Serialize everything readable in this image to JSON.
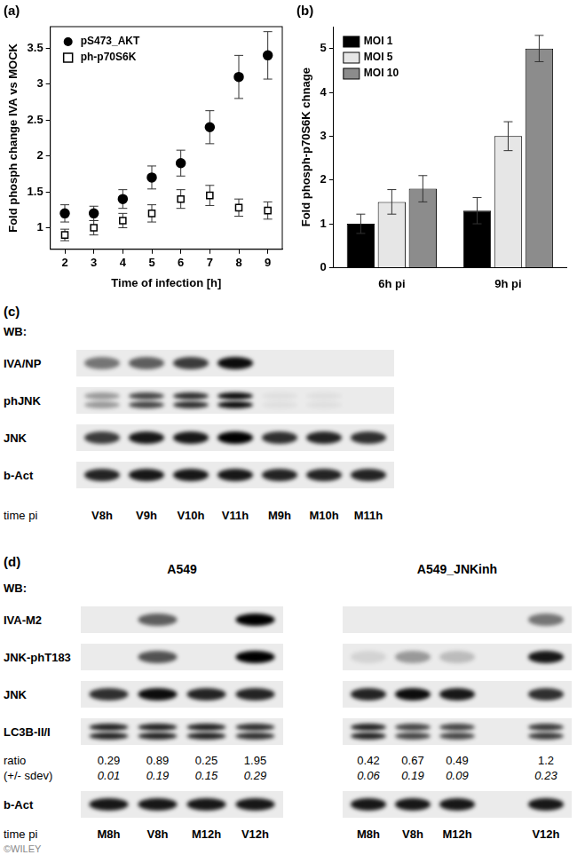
{
  "chart_data": [
    {
      "type": "scatter",
      "title": "(a)",
      "x_label": "Time of infection [h]",
      "y_label": "Fold phosph change IVA vs MOCK",
      "x": [
        2,
        3,
        4,
        5,
        6,
        7,
        8,
        9
      ],
      "xlim": [
        1.5,
        9.5
      ],
      "xticks": [
        2,
        3,
        4,
        5,
        6,
        7,
        8,
        9
      ],
      "ylim": [
        0.7,
        3.8
      ],
      "yticks": [
        1,
        1.5,
        2,
        2.5,
        3,
        3.5
      ],
      "grid": false,
      "legend": "upper left",
      "series": [
        {
          "name": "pS473_AKT",
          "color": "#000000",
          "marker": "circle",
          "values": [
            1.2,
            1.2,
            1.4,
            1.7,
            1.9,
            2.4,
            3.1,
            3.4
          ],
          "errors": [
            0.12,
            0.1,
            0.13,
            0.16,
            0.18,
            0.23,
            0.3,
            0.33
          ]
        },
        {
          "name": "ph-p70S6K",
          "color": "#000000",
          "marker": "open-square",
          "values": [
            0.9,
            1.0,
            1.1,
            1.2,
            1.4,
            1.45,
            1.28,
            1.24
          ],
          "errors": [
            0.08,
            0.1,
            0.1,
            0.12,
            0.13,
            0.14,
            0.12,
            0.12
          ]
        }
      ]
    },
    {
      "type": "bar",
      "title": "(b)",
      "y_label": "Fold phosph-p70S6K chnage",
      "categories": [
        "6h pi",
        "9h pi"
      ],
      "ylim": [
        0,
        5.5
      ],
      "yticks": [
        0,
        1,
        2,
        3,
        4,
        5
      ],
      "grid": false,
      "legend": "upper left",
      "series": [
        {
          "name": "MOI 1",
          "color": "#000000",
          "values": [
            1.0,
            1.3
          ],
          "errors": [
            0.22,
            0.3
          ]
        },
        {
          "name": "MOI 5",
          "color": "#e6e6e6",
          "values": [
            1.5,
            3.0
          ],
          "errors": [
            0.28,
            0.33
          ]
        },
        {
          "name": "MOI 10",
          "color": "#8c8c8c",
          "values": [
            1.8,
            5.0
          ],
          "errors": [
            0.3,
            0.3
          ]
        }
      ]
    }
  ],
  "blots": [
    {
      "panel": "(c)",
      "header": "WB:",
      "lane_axis_label": "time pi",
      "panels": [
        {
          "lanes": [
            "V8h",
            "V9h",
            "V10h",
            "V11h",
            "M9h",
            "M10h",
            "M11h"
          ],
          "rows": [
            {
              "label": "IVA/NP",
              "intensity": [
                0.5,
                0.6,
                0.75,
                0.95,
                0,
                0,
                0
              ]
            },
            {
              "label": "phJNK",
              "doublet": true,
              "intensity": [
                0.35,
                0.7,
                0.8,
                0.95,
                0.05,
                0.05,
                0
              ]
            },
            {
              "label": "JNK",
              "intensity": [
                0.75,
                0.9,
                0.9,
                1,
                0.8,
                0.85,
                0.8
              ]
            },
            {
              "label": "b-Act",
              "intensity": [
                0.85,
                0.9,
                0.9,
                0.9,
                0.85,
                0.85,
                0.85
              ]
            }
          ]
        }
      ]
    },
    {
      "panel": "(d)",
      "header": "WB:",
      "lane_axis_label": "time pi",
      "panels": [
        {
          "title": "A549",
          "lanes": [
            "M8h",
            "V8h",
            "M12h",
            "V12h"
          ],
          "rows": [
            {
              "label": "IVA-M2",
              "intensity": [
                0,
                0.6,
                0,
                1
              ]
            },
            {
              "label": "JNK-phT183",
              "intensity": [
                0,
                0.65,
                0,
                1
              ]
            },
            {
              "label": "JNK",
              "intensity": [
                0.8,
                0.95,
                0.85,
                0.85
              ]
            },
            {
              "label": "LC3B-II/I",
              "doublet": true,
              "intensity": [
                0.85,
                0.85,
                0.85,
                0.8
              ]
            },
            {
              "label": "ratio",
              "sdev_label": "(+/- sdev)",
              "values": [
                0.29,
                0.89,
                0.25,
                1.95
              ],
              "sdev": [
                0.01,
                0.19,
                0.15,
                0.29
              ]
            },
            {
              "label": "b-Act",
              "intensity": [
                0.9,
                0.9,
                0.9,
                0.9
              ]
            }
          ]
        },
        {
          "title": "A549_JNKinh",
          "lanes": [
            "M8h",
            "V8h",
            "M12h",
            null,
            "V12h"
          ],
          "rows": [
            {
              "intensity": [
                0,
                0,
                0,
                0,
                0.5
              ]
            },
            {
              "intensity": [
                0.1,
                0.35,
                0.2,
                0,
                0.9
              ]
            },
            {
              "intensity": [
                0.85,
                0.95,
                0.9,
                0,
                0.8
              ]
            },
            {
              "doublet": true,
              "intensity": [
                0.85,
                0.7,
                0.7,
                0,
                0.75
              ]
            },
            {
              "values": [
                0.42,
                0.67,
                0.49,
                null,
                1.2
              ],
              "sdev": [
                0.06,
                0.19,
                0.09,
                null,
                0.23
              ]
            },
            {
              "intensity": [
                0.9,
                0.9,
                0.9,
                0,
                0.9
              ]
            }
          ]
        }
      ]
    }
  ],
  "watermark": "©WILEY"
}
